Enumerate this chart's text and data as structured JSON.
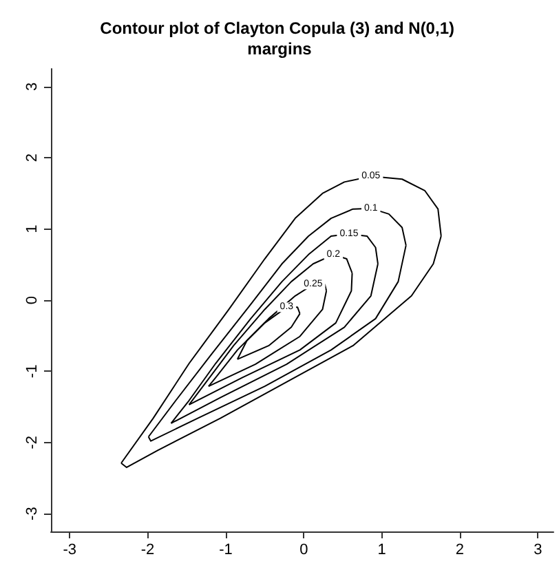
{
  "chart_data": {
    "type": "line",
    "title": "Contour plot of Clayton Copula (3) and N(0,1) margins",
    "xlim": [
      -3.24,
      3.2
    ],
    "ylim": [
      -3.25,
      3.25
    ],
    "xticks": [
      -3,
      -2,
      -1,
      0,
      1,
      2,
      3
    ],
    "yticks": [
      -3,
      -2,
      -1,
      0,
      1,
      2,
      3
    ],
    "grid": false,
    "legend": false,
    "marker": "none",
    "line_style": "solid",
    "series": [
      {
        "name": "0.05",
        "color": "#000000",
        "x": [
          -2.34,
          -1.93,
          -1.47,
          -0.96,
          -0.5,
          -0.11,
          0.24,
          0.52,
          0.86,
          1.26,
          1.55,
          1.72,
          1.76
        ],
        "values": [
          -2.29,
          -1.66,
          -0.89,
          -0.13,
          0.58,
          1.15,
          1.5,
          1.66,
          1.74,
          1.7,
          1.54,
          1.28,
          0.9
        ]
      },
      {
        "color": "#000000",
        "x": [
          -2.34,
          -2.27,
          -1.87,
          -1.07,
          -0.22,
          0.63,
          1.38,
          1.66,
          1.76
        ],
        "values": [
          -2.29,
          -2.35,
          -2.11,
          -1.66,
          -1.15,
          -0.64,
          0.06,
          0.51,
          0.9
        ]
      },
      {
        "name": "0.1",
        "color": "#000000",
        "x": [
          -1.99,
          -1.64,
          -1.19,
          -0.68,
          -0.28,
          0.06,
          0.35,
          0.63,
          0.86,
          1.09,
          1.26,
          1.31
        ],
        "values": [
          -1.92,
          -1.41,
          -0.77,
          -0.06,
          0.51,
          0.9,
          1.15,
          1.28,
          1.29,
          1.21,
          1.02,
          0.77
        ]
      },
      {
        "color": "#000000",
        "x": [
          -1.99,
          -1.96,
          -1.36,
          -0.5,
          0.35,
          0.92,
          1.21,
          1.31
        ],
        "values": [
          -1.92,
          -1.98,
          -1.66,
          -1.21,
          -0.7,
          -0.26,
          0.26,
          0.77
        ]
      },
      {
        "name": "0.15",
        "color": "#000000",
        "x": [
          -1.7,
          -1.47,
          -1.13,
          -0.68,
          -0.28,
          0.06,
          0.35,
          0.58,
          0.81,
          0.92,
          0.95
        ],
        "values": [
          -1.73,
          -1.41,
          -0.89,
          -0.26,
          0.26,
          0.64,
          0.9,
          0.93,
          0.9,
          0.74,
          0.51
        ]
      },
      {
        "color": "#000000",
        "x": [
          -1.7,
          -1.07,
          -0.22,
          0.52,
          0.86,
          0.95
        ],
        "values": [
          -1.73,
          -1.37,
          -0.9,
          -0.38,
          0.06,
          0.51
        ]
      },
      {
        "name": "0.2",
        "color": "#000000",
        "x": [
          -1.47,
          -1.25,
          -0.9,
          -0.5,
          -0.16,
          0.12,
          0.38,
          0.55,
          0.62
        ],
        "values": [
          -1.47,
          -1.15,
          -0.64,
          -0.13,
          0.26,
          0.51,
          0.64,
          0.58,
          0.38
        ]
      },
      {
        "color": "#000000",
        "x": [
          -1.47,
          -0.79,
          -0.05,
          0.41,
          0.61,
          0.62
        ],
        "values": [
          -1.47,
          -1.09,
          -0.7,
          -0.32,
          0.13,
          0.38
        ]
      },
      {
        "name": "0.25",
        "color": "#000000",
        "x": [
          -1.22,
          -1.13,
          -0.85,
          -0.45,
          -0.11,
          0.12,
          0.27,
          0.29
        ],
        "values": [
          -1.21,
          -1.09,
          -0.7,
          -0.26,
          0.06,
          0.22,
          0.22,
          0.13
        ]
      },
      {
        "color": "#000000",
        "x": [
          -1.22,
          -0.62,
          -0.05,
          0.24,
          0.29
        ],
        "values": [
          -1.21,
          -0.9,
          -0.51,
          -0.13,
          0.13
        ]
      },
      {
        "name": "0.3",
        "color": "#000000",
        "x": [
          -0.85,
          -0.73,
          -0.5,
          -0.22,
          -0.08,
          -0.05
        ],
        "values": [
          -0.83,
          -0.57,
          -0.32,
          -0.1,
          -0.1,
          -0.19
        ]
      },
      {
        "color": "#000000",
        "x": [
          -0.85,
          -0.45,
          -0.16,
          -0.05
        ],
        "values": [
          -0.83,
          -0.64,
          -0.38,
          -0.19
        ]
      }
    ]
  }
}
